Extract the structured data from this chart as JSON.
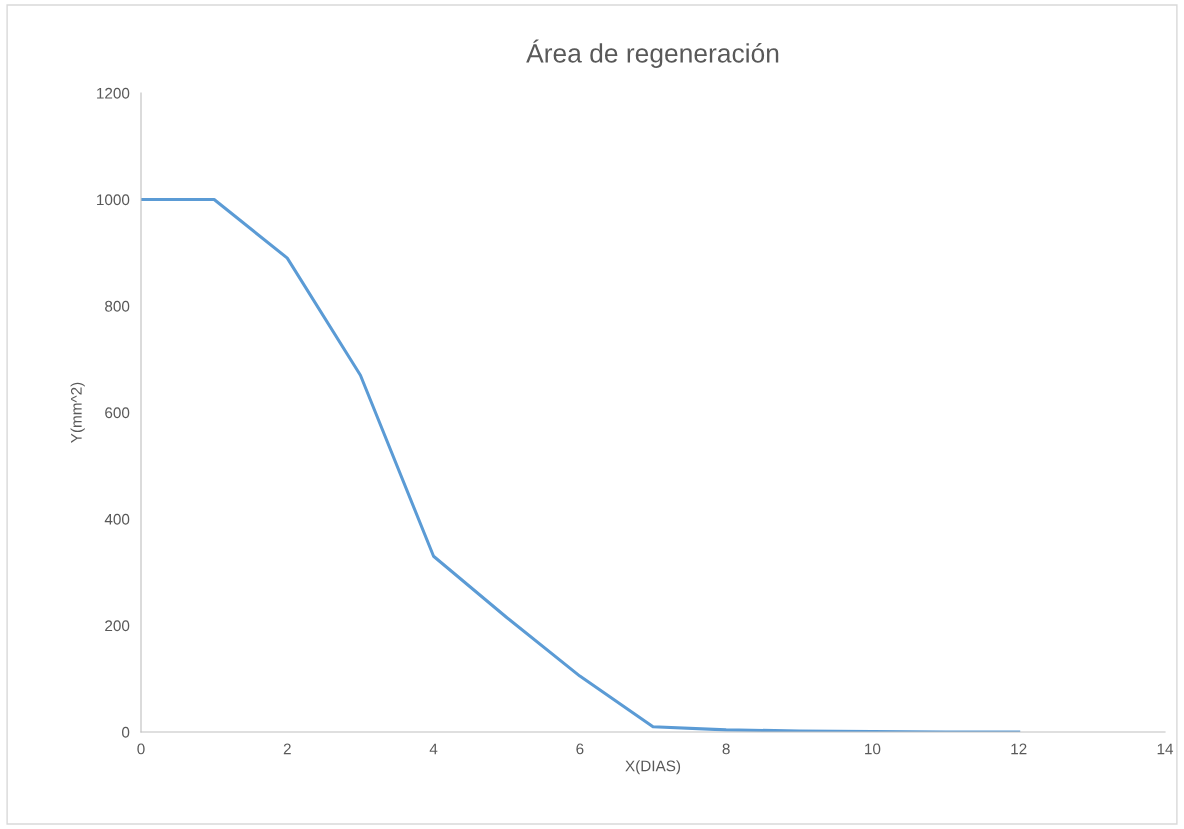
{
  "chart_data": {
    "type": "line",
    "title": "Área de regeneración",
    "xlabel": "X(DIAS)",
    "ylabel": "Y(mm^2)",
    "x": [
      0,
      1,
      2,
      3,
      4,
      5,
      6,
      7,
      8,
      9,
      10,
      11,
      12
    ],
    "series": [
      {
        "color": "#5b9bd5",
        "values": [
          1000,
          1000,
          890,
          670,
          330,
          215,
          105,
          10,
          4,
          2,
          1,
          0,
          0
        ]
      }
    ],
    "xlim": [
      0,
      14
    ],
    "xticks": [
      0,
      2,
      4,
      6,
      8,
      10,
      12,
      14
    ],
    "ylim": [
      0,
      1200
    ],
    "yticks": [
      0,
      200,
      400,
      600,
      800,
      1000,
      1200
    ],
    "grid": false,
    "legend": false,
    "marker": "none",
    "line_style": "solid"
  }
}
